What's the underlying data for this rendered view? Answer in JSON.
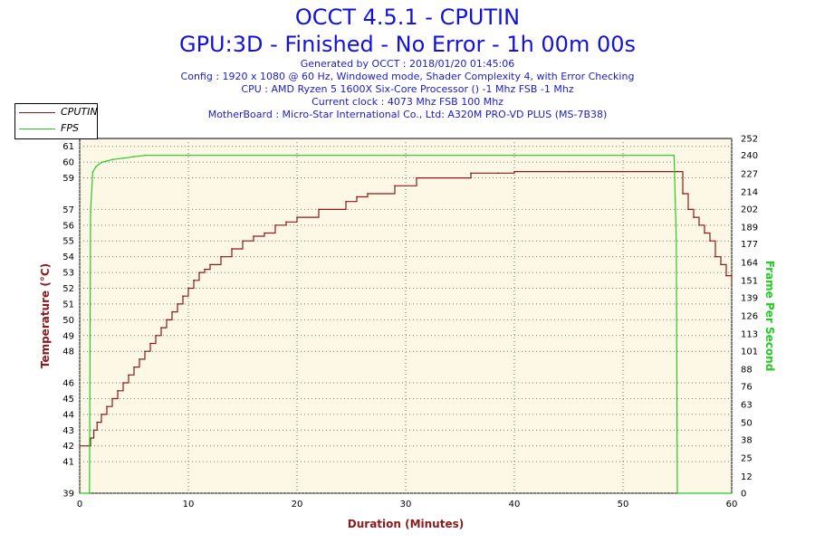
{
  "title": {
    "line1": "OCCT 4.5.1 - CPUTIN",
    "line2": "GPU:3D - Finished - No Error - 1h 00m 00s"
  },
  "info": {
    "generated": "Generated by OCCT : 2018/01/20 01:45:06",
    "config": "Config : 1920 x 1080 @ 60 Hz, Windowed mode, Shader Complexity 4, with Error Checking",
    "cpu": "CPU : AMD Ryzen 5 1600X Six-Core Processor () -1 Mhz FSB -1 Mhz",
    "clock": "Current clock : 4073 Mhz FSB 100 Mhz",
    "motherboard": "MotherBoard : Micro-Star International Co., Ltd: A320M PRO-VD PLUS (MS-7B38)"
  },
  "legend": [
    {
      "label": "CPUTIN",
      "color": "#8b1a1a"
    },
    {
      "label": "FPS",
      "color": "#22cc22"
    }
  ],
  "chart_data": {
    "type": "line",
    "xlabel": "Duration (Minutes)",
    "ylabel": "Temperature (°C)",
    "y2label": "Frame Per Second",
    "xlim": [
      0,
      60
    ],
    "ylim": [
      39,
      61.5
    ],
    "y2lim": [
      0,
      252
    ],
    "x_ticks": [
      "0",
      "10",
      "20",
      "30",
      "40",
      "50",
      "60"
    ],
    "y_ticks": [
      "39",
      "41",
      "42",
      "43",
      "44",
      "45",
      "46",
      "48",
      "49",
      "50",
      "51",
      "52",
      "53",
      "54",
      "55",
      "56",
      "57",
      "59",
      "60",
      "61"
    ],
    "y2_ticks": [
      "0",
      "12",
      "25",
      "38",
      "50",
      "63",
      "76",
      "88",
      "101",
      "113",
      "126",
      "139",
      "151",
      "164",
      "177",
      "189",
      "202",
      "214",
      "227",
      "240",
      "252"
    ],
    "grid": true,
    "legend_position": "top-left",
    "background": "#fdf8e6",
    "series": [
      {
        "name": "CPUTIN",
        "axis": "left",
        "color": "#8b1a1a",
        "x": [
          0,
          0.9,
          1.0,
          1.3,
          1.6,
          2.0,
          2.5,
          3.0,
          3.5,
          4.0,
          4.5,
          5.0,
          5.5,
          6.0,
          6.5,
          7.0,
          7.5,
          8.0,
          8.5,
          9.0,
          9.5,
          10.0,
          10.5,
          11.0,
          11.5,
          12.0,
          13.0,
          14.0,
          15.0,
          16.0,
          17.0,
          18.0,
          19.0,
          20.0,
          22.0,
          24.5,
          25.5,
          26.5,
          29.0,
          31.0,
          36.0,
          38.5,
          40.0,
          45.0,
          50.0,
          55.0,
          55.5,
          56.0,
          56.5,
          57.0,
          57.5,
          58.0,
          58.5,
          59.0,
          59.5,
          60.0
        ],
        "y": [
          42.0,
          42.0,
          42.5,
          43.0,
          43.5,
          44.0,
          44.5,
          45.0,
          45.5,
          46.0,
          46.5,
          47.0,
          47.5,
          48.0,
          48.5,
          49.0,
          49.5,
          50.0,
          50.5,
          51.0,
          51.5,
          52.0,
          52.5,
          53.0,
          53.2,
          53.5,
          54.0,
          54.5,
          55.0,
          55.3,
          55.5,
          56.0,
          56.2,
          56.5,
          57.0,
          57.5,
          57.8,
          58.0,
          58.5,
          59.0,
          59.3,
          59.3,
          59.4,
          59.4,
          59.4,
          59.4,
          58.0,
          57.0,
          56.5,
          56.0,
          55.5,
          55.0,
          54.0,
          53.5,
          52.8,
          52.2
        ]
      },
      {
        "name": "FPS",
        "axis": "right",
        "color": "#22cc22",
        "x": [
          0,
          0.9,
          1.0,
          1.2,
          1.5,
          2.0,
          2.5,
          3.0,
          4.0,
          5.0,
          6.0,
          10.0,
          20.0,
          30.0,
          40.0,
          50.0,
          54.7,
          54.9,
          55.0,
          60.0
        ],
        "y": [
          0,
          0,
          200,
          228,
          232,
          235,
          236,
          237,
          238,
          239,
          240,
          240,
          240,
          240,
          240,
          240,
          240,
          180,
          0,
          0
        ]
      }
    ]
  }
}
